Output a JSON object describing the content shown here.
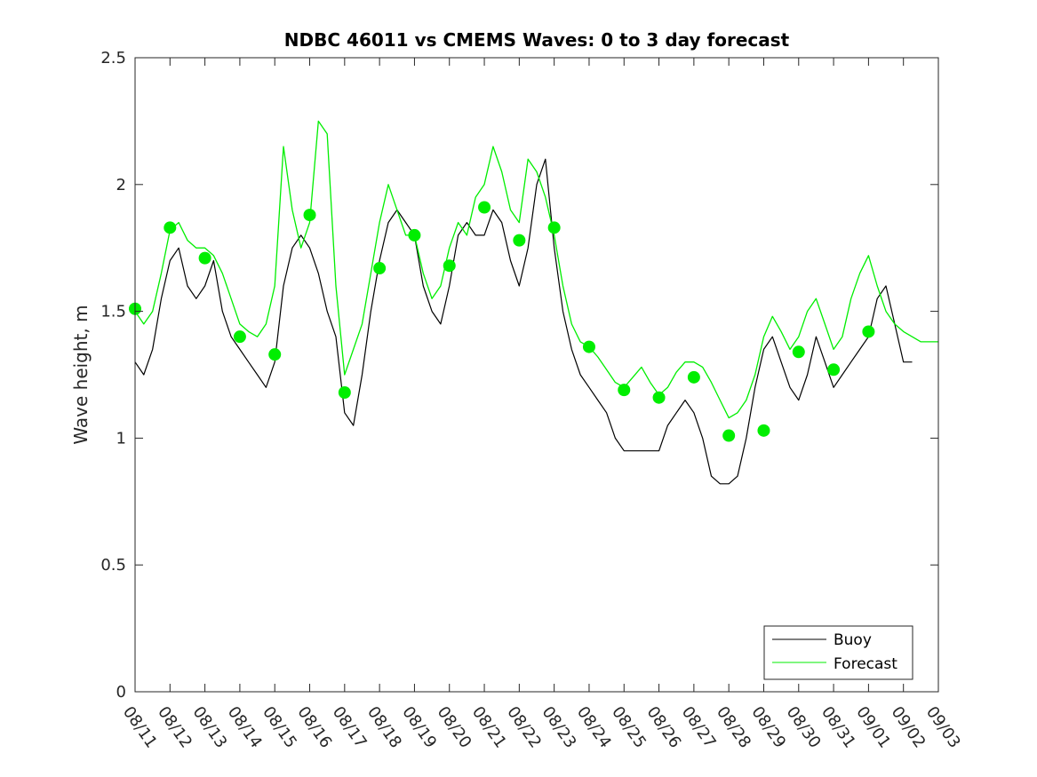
{
  "chart_data": {
    "type": "line",
    "title": "NDBC 46011 vs CMEMS Waves: 0 to 3 day forecast",
    "xlabel": "",
    "ylabel": "Wave height, m",
    "xlim": [
      0,
      23
    ],
    "ylim": [
      0,
      2.5
    ],
    "yticks": [
      0,
      0.5,
      1,
      1.5,
      2,
      2.5
    ],
    "ytick_labels": [
      "0",
      "0.5",
      "1",
      "1.5",
      "2",
      "2.5"
    ],
    "xtick_labels": [
      "08/11",
      "08/12",
      "08/13",
      "08/14",
      "08/15",
      "08/16",
      "08/17",
      "08/18",
      "08/19",
      "08/20",
      "08/21",
      "08/22",
      "08/23",
      "08/24",
      "08/25",
      "08/26",
      "08/27",
      "08/28",
      "08/29",
      "08/30",
      "08/31",
      "09/01",
      "09/02",
      "09/03"
    ],
    "grid": false,
    "legend": {
      "position": "bottom-right",
      "entries": [
        "Buoy",
        "Forecast"
      ]
    },
    "colors": {
      "buoy": "#000000",
      "forecast": "#00ee00",
      "axes": "#262626"
    },
    "series": [
      {
        "name": "Buoy",
        "color": "#000000",
        "x": [
          0.0,
          0.25,
          0.5,
          0.75,
          1.0,
          1.25,
          1.5,
          1.75,
          2.0,
          2.25,
          2.5,
          2.75,
          3.0,
          3.25,
          3.5,
          3.75,
          4.0,
          4.25,
          4.5,
          4.75,
          5.0,
          5.25,
          5.5,
          5.75,
          6.0,
          6.25,
          6.5,
          6.75,
          7.0,
          7.25,
          7.5,
          7.75,
          8.0,
          8.25,
          8.5,
          8.75,
          9.0,
          9.25,
          9.5,
          9.75,
          10.0,
          10.25,
          10.5,
          10.75,
          11.0,
          11.25,
          11.5,
          11.75,
          12.0,
          12.25,
          12.5,
          12.75,
          13.0,
          13.25,
          13.5,
          13.75,
          14.0,
          14.25,
          14.5,
          14.75,
          15.0,
          15.25,
          15.5,
          15.75,
          16.0,
          16.25,
          16.5,
          16.75,
          17.0,
          17.25,
          17.5,
          17.75,
          18.0,
          18.25,
          18.5,
          18.75,
          19.0,
          19.25,
          19.5,
          19.75,
          20.0,
          20.25,
          20.5,
          20.75,
          21.0,
          21.25,
          21.5,
          21.75,
          22.0,
          22.25
        ],
        "y": [
          1.3,
          1.25,
          1.35,
          1.55,
          1.7,
          1.75,
          1.6,
          1.55,
          1.6,
          1.7,
          1.5,
          1.4,
          1.35,
          1.3,
          1.25,
          1.2,
          1.3,
          1.6,
          1.75,
          1.8,
          1.75,
          1.65,
          1.5,
          1.4,
          1.1,
          1.05,
          1.25,
          1.5,
          1.7,
          1.85,
          1.9,
          1.85,
          1.8,
          1.6,
          1.5,
          1.45,
          1.6,
          1.8,
          1.85,
          1.8,
          1.8,
          1.9,
          1.85,
          1.7,
          1.6,
          1.75,
          2.0,
          2.1,
          1.75,
          1.5,
          1.35,
          1.25,
          1.2,
          1.15,
          1.1,
          1.0,
          0.95,
          0.95,
          0.95,
          0.95,
          0.95,
          1.05,
          1.1,
          1.15,
          1.1,
          1.0,
          0.85,
          0.82,
          0.82,
          0.85,
          1.0,
          1.2,
          1.35,
          1.4,
          1.3,
          1.2,
          1.15,
          1.25,
          1.4,
          1.3,
          1.2,
          1.25,
          1.3,
          1.35,
          1.4,
          1.55,
          1.6,
          1.45,
          1.3,
          1.3
        ]
      },
      {
        "name": "Forecast",
        "color": "#00ee00",
        "x": [
          0.0,
          0.25,
          0.5,
          0.75,
          1.0,
          1.25,
          1.5,
          1.75,
          2.0,
          2.25,
          2.5,
          2.75,
          3.0,
          3.25,
          3.5,
          3.75,
          4.0,
          4.25,
          4.5,
          4.75,
          5.0,
          5.25,
          5.5,
          5.75,
          6.0,
          6.25,
          6.5,
          6.75,
          7.0,
          7.25,
          7.5,
          7.75,
          8.0,
          8.25,
          8.5,
          8.75,
          9.0,
          9.25,
          9.5,
          9.75,
          10.0,
          10.25,
          10.5,
          10.75,
          11.0,
          11.25,
          11.5,
          11.75,
          12.0,
          12.25,
          12.5,
          12.75,
          13.0,
          13.25,
          13.5,
          13.75,
          14.0,
          14.25,
          14.5,
          14.75,
          15.0,
          15.25,
          15.5,
          15.75,
          16.0,
          16.25,
          16.5,
          16.75,
          17.0,
          17.25,
          17.5,
          17.75,
          18.0,
          18.25,
          18.5,
          18.75,
          19.0,
          19.25,
          19.5,
          19.75,
          20.0,
          20.25,
          20.5,
          20.75,
          21.0,
          21.25,
          21.5,
          21.75,
          22.0,
          22.25,
          22.5,
          22.75,
          23.0
        ],
        "y": [
          1.5,
          1.45,
          1.5,
          1.65,
          1.82,
          1.85,
          1.78,
          1.75,
          1.75,
          1.72,
          1.65,
          1.55,
          1.45,
          1.42,
          1.4,
          1.45,
          1.6,
          2.15,
          1.9,
          1.75,
          1.85,
          2.25,
          2.2,
          1.6,
          1.25,
          1.35,
          1.45,
          1.65,
          1.85,
          2.0,
          1.9,
          1.8,
          1.8,
          1.65,
          1.55,
          1.6,
          1.75,
          1.85,
          1.8,
          1.95,
          2.0,
          2.15,
          2.05,
          1.9,
          1.85,
          2.1,
          2.05,
          1.95,
          1.8,
          1.6,
          1.45,
          1.38,
          1.36,
          1.32,
          1.27,
          1.22,
          1.2,
          1.24,
          1.28,
          1.22,
          1.17,
          1.2,
          1.26,
          1.3,
          1.3,
          1.28,
          1.22,
          1.15,
          1.08,
          1.1,
          1.15,
          1.25,
          1.4,
          1.48,
          1.42,
          1.35,
          1.4,
          1.5,
          1.55,
          1.45,
          1.35,
          1.4,
          1.55,
          1.65,
          1.72,
          1.6,
          1.5,
          1.45,
          1.42,
          1.4,
          1.38,
          1.38,
          1.38
        ]
      },
      {
        "name": "Forecast start points",
        "color": "#00ee00",
        "x": [
          0.0,
          1.0,
          2.0,
          3.0,
          4.0,
          5.0,
          6.0,
          7.0,
          8.0,
          9.0,
          10.0,
          11.0,
          12.0,
          13.0,
          14.0,
          15.0,
          16.0,
          17.0,
          18.0,
          19.0,
          20.0,
          21.0
        ],
        "y": [
          1.51,
          1.83,
          1.71,
          1.4,
          1.33,
          1.88,
          1.18,
          1.67,
          1.8,
          1.68,
          1.91,
          1.78,
          1.83,
          1.36,
          1.19,
          1.16,
          1.24,
          1.01,
          1.03,
          1.34,
          1.27,
          1.42
        ]
      }
    ]
  }
}
